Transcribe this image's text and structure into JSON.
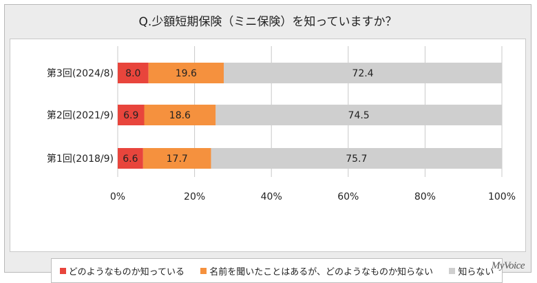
{
  "chart_title": "Q.少額短期保険（ミニ保険）を知っていますか？",
  "brand": "MyVoice",
  "colors": {
    "known": "#e8453c",
    "heard": "#f5913e",
    "unknown": "#cfcfcf",
    "grid": "#c8c8c8"
  },
  "chart_data": {
    "type": "bar",
    "orientation": "horizontal",
    "stacked": "percent",
    "title": "Q.少額短期保険（ミニ保険）を知っていますか？",
    "categories": [
      "第3回(2024/8)",
      "第2回(2021/9)",
      "第1回(2018/9)"
    ],
    "series": [
      {
        "name": "どのようなものか知っている",
        "values": [
          8.0,
          6.9,
          6.6
        ]
      },
      {
        "name": "名前を聞いたことはあるが、どのようなものか知らない",
        "values": [
          19.6,
          18.6,
          17.7
        ]
      },
      {
        "name": "知らない",
        "values": [
          72.4,
          74.5,
          75.7
        ]
      }
    ],
    "xlim": [
      0,
      100
    ],
    "x_ticks": [
      "0%",
      "20%",
      "40%",
      "60%",
      "80%",
      "100%"
    ],
    "grid": true,
    "legend_position": "bottom",
    "data_labels": true
  }
}
